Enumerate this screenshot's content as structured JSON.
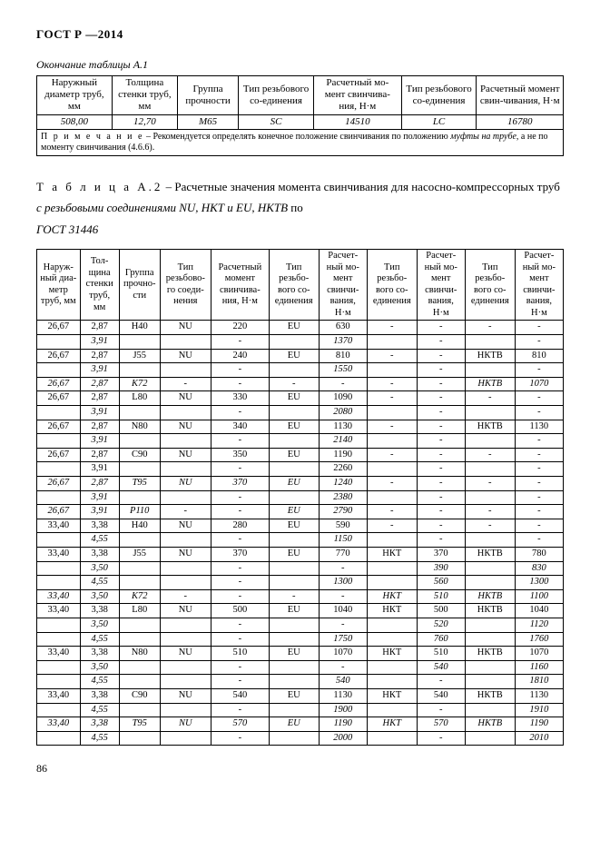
{
  "header": "ГОСТ Р               —2014",
  "caption1": "Окончание таблицы А.1",
  "t1": {
    "headers": [
      "Наружный диаметр труб, мм",
      "Толщина стенки труб, мм",
      "Группа прочности",
      "Тип резьбового со-единения",
      "Расчетный мо-мент свинчива-ния, Н·м",
      "Тип резьбового со-единения",
      "Расчетный момент свин-чивания, Н·м"
    ],
    "row": [
      "508,00",
      "12,70",
      "М65",
      "SC",
      "14510",
      "LC",
      "16780"
    ],
    "note_label": "П р и м е ч а н и е",
    "note_body1": " – Рекомендуется определять конечное положение свинчивания по положению ",
    "note_i1": "муфты на трубе",
    "note_body2": ", а не по моменту свинчивания (4.6.6)."
  },
  "title2_prefix": "Т а б л и ц а  А.2",
  "title2_body": " – Расчетные значения момента свинчивания для насосно-компрессорных труб ",
  "title2_i": "с резьбовыми соединениями NU, НКТ и EU, НКТВ",
  "title2_after": " по",
  "title2_std": "ГОСТ 31446",
  "t2": {
    "headers": [
      "Наруж-ный диа-метр труб, мм",
      "Тол-щина стенки труб, мм",
      "Группа прочно-сти",
      "Тип резьбово-го соеди-нения",
      "Расчетный момент свинчива-ния, Н·м",
      "Тип резьбо-вого со-единения",
      "Расчет-ный мо-мент свинчи-вания, Н·м",
      "Тип резьбо-вого со-единения",
      "Расчет-ный мо-мент свинчи-вания, Н·м",
      "Тип резьбо-вого со-единения",
      "Расчет-ный мо-мент свинчи-вания, Н·м"
    ],
    "rows": [
      [
        "26,67",
        "2,87",
        "H40",
        "NU",
        "220",
        "EU",
        "630",
        "-",
        "-",
        "-",
        "-",
        0
      ],
      [
        "",
        "3,91",
        "",
        "",
        "-",
        "",
        "1370",
        "",
        "-",
        "",
        "-",
        1
      ],
      [
        "26,67",
        "2,87",
        "J55",
        "NU",
        "240",
        "EU",
        "810",
        "-",
        "-",
        "НКТВ",
        "810",
        0
      ],
      [
        "",
        "3,91",
        "",
        "",
        "-",
        "",
        "1550",
        "",
        "-",
        "",
        "-",
        1
      ],
      [
        "26,67",
        "2,87",
        "K72",
        "-",
        "-",
        "-",
        "-",
        "-",
        "-",
        "НКТВ",
        "1070",
        1
      ],
      [
        "26,67",
        "2,87",
        "L80",
        "NU",
        "330",
        "EU",
        "1090",
        "-",
        "-",
        "-",
        "-",
        0
      ],
      [
        "",
        "3,91",
        "",
        "",
        "-",
        "",
        "2080",
        "",
        "-",
        "",
        "-",
        1
      ],
      [
        "26,67",
        "2,87",
        "N80",
        "NU",
        "340",
        "EU",
        "1130",
        "-",
        "-",
        "НКТВ",
        "1130",
        0
      ],
      [
        "",
        "3,91",
        "",
        "",
        "-",
        "",
        "2140",
        "",
        "-",
        "",
        "-",
        1
      ],
      [
        "26,67",
        "2,87",
        "C90",
        "NU",
        "350",
        "EU",
        "1190",
        "-",
        "-",
        "-",
        "-",
        0
      ],
      [
        "",
        "3,91",
        "",
        "",
        "-",
        "",
        "2260",
        "",
        "-",
        "",
        "-",
        0
      ],
      [
        "26,67",
        "2,87",
        "T95",
        "NU",
        "370",
        "EU",
        "1240",
        "-",
        "-",
        "-",
        "-",
        1
      ],
      [
        "",
        "3,91",
        "",
        "",
        "-",
        "",
        "2380",
        "",
        "-",
        "",
        "-",
        1
      ],
      [
        "26,67",
        "3,91",
        "P110",
        "-",
        "-",
        "EU",
        "2790",
        "-",
        "-",
        "-",
        "-",
        1
      ],
      [
        "33,40",
        "3,38",
        "H40",
        "NU",
        "280",
        "EU",
        "590",
        "-",
        "-",
        "-",
        "-",
        0
      ],
      [
        "",
        "4,55",
        "",
        "",
        "-",
        "",
        "1150",
        "",
        "-",
        "",
        "-",
        1
      ],
      [
        "33,40",
        "3,38",
        "J55",
        "NU",
        "370",
        "EU",
        "770",
        "НКТ",
        "370",
        "НКТВ",
        "780",
        0
      ],
      [
        "",
        "3,50",
        "",
        "",
        "-",
        "",
        "-",
        "",
        "390",
        "",
        "830",
        1
      ],
      [
        "",
        "4,55",
        "",
        "",
        "-",
        "",
        "1300",
        "",
        "560",
        "",
        "1300",
        1
      ],
      [
        "33,40",
        "3,50",
        "K72",
        "-",
        "-",
        "-",
        "-",
        "НКТ",
        "510",
        "НКТВ",
        "1100",
        1
      ],
      [
        "33,40",
        "3,38",
        "L80",
        "NU",
        "500",
        "EU",
        "1040",
        "НКТ",
        "500",
        "НКТВ",
        "1040",
        0
      ],
      [
        "",
        "3,50",
        "",
        "",
        "-",
        "",
        "-",
        "",
        "520",
        "",
        "1120",
        1
      ],
      [
        "",
        "4,55",
        "",
        "",
        "-",
        "",
        "1750",
        "",
        "760",
        "",
        "1760",
        1
      ],
      [
        "33,40",
        "3,38",
        "N80",
        "NU",
        "510",
        "EU",
        "1070",
        "НКТ",
        "510",
        "НКТВ",
        "1070",
        0
      ],
      [
        "",
        "3,50",
        "",
        "",
        "-",
        "",
        "-",
        "",
        "540",
        "",
        "1160",
        1
      ],
      [
        "",
        "4,55",
        "",
        "",
        "-",
        "",
        "540",
        "",
        "-",
        "",
        "1810",
        1
      ],
      [
        "33,40",
        "3,38",
        "C90",
        "NU",
        "540",
        "EU",
        "1130",
        "НКТ",
        "540",
        "НКТВ",
        "1130",
        0
      ],
      [
        "",
        "4,55",
        "",
        "",
        "-",
        "",
        "1900",
        "",
        "-",
        "",
        "1910",
        1
      ],
      [
        "33,40",
        "3,38",
        "T95",
        "NU",
        "570",
        "EU",
        "1190",
        "НКТ",
        "570",
        "НКТВ",
        "1190",
        1
      ],
      [
        "",
        "4,55",
        "",
        "",
        "-",
        "",
        "2000",
        "",
        "-",
        "",
        "2010",
        1
      ]
    ]
  },
  "pagenum": "86"
}
